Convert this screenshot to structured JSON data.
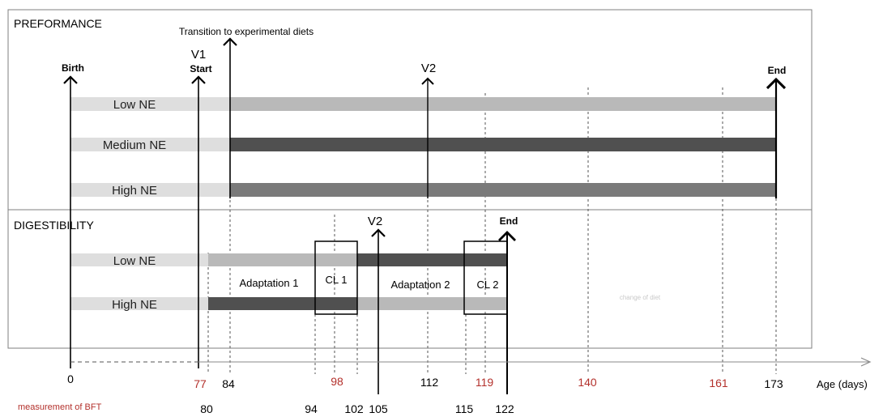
{
  "performance": {
    "title": "PREFORMANCE",
    "transition_label": "Transition to experimental diets",
    "v1_label": "V1",
    "start_label": "Start",
    "birth_label": "Birth",
    "v2_label": "V2",
    "end_label": "End",
    "bars": [
      {
        "label": "Low NE",
        "color": "#b9b9b9"
      },
      {
        "label": "Medium NE",
        "color": "#505050"
      },
      {
        "label": "High NE",
        "color": "#7a7a7a"
      }
    ],
    "pre_color": "#dedede"
  },
  "digestibility": {
    "title": "DIGESTIBILITY",
    "v2_label": "V2",
    "end_label": "End",
    "bars": [
      {
        "label": "Low NE"
      },
      {
        "label": "High NE"
      }
    ],
    "phases": {
      "adaptation1": "Adaptation 1",
      "cl1": "CL 1",
      "adaptation2": "Adaptation 2",
      "cl2": "CL 2"
    },
    "faint_note": "change of diet"
  },
  "axis": {
    "label": "Age (days)",
    "ticks_upper": [
      "0",
      "77",
      "84",
      "98",
      "112",
      "119",
      "140",
      "161",
      "173"
    ],
    "ticks_upper_red": [
      "77",
      "98",
      "119",
      "140",
      "161"
    ],
    "ticks_lower": [
      "80",
      "94",
      "102",
      "105",
      "115",
      "122"
    ]
  },
  "footer": {
    "bft_label": "measurement of BFT"
  },
  "colors": {
    "red": "#b3302b",
    "frame": "#7f7f7f",
    "light_bar": "#dedede",
    "mid_bar": "#b9b9b9",
    "dark_bar": "#505050",
    "high_bar": "#7a7a7a"
  }
}
